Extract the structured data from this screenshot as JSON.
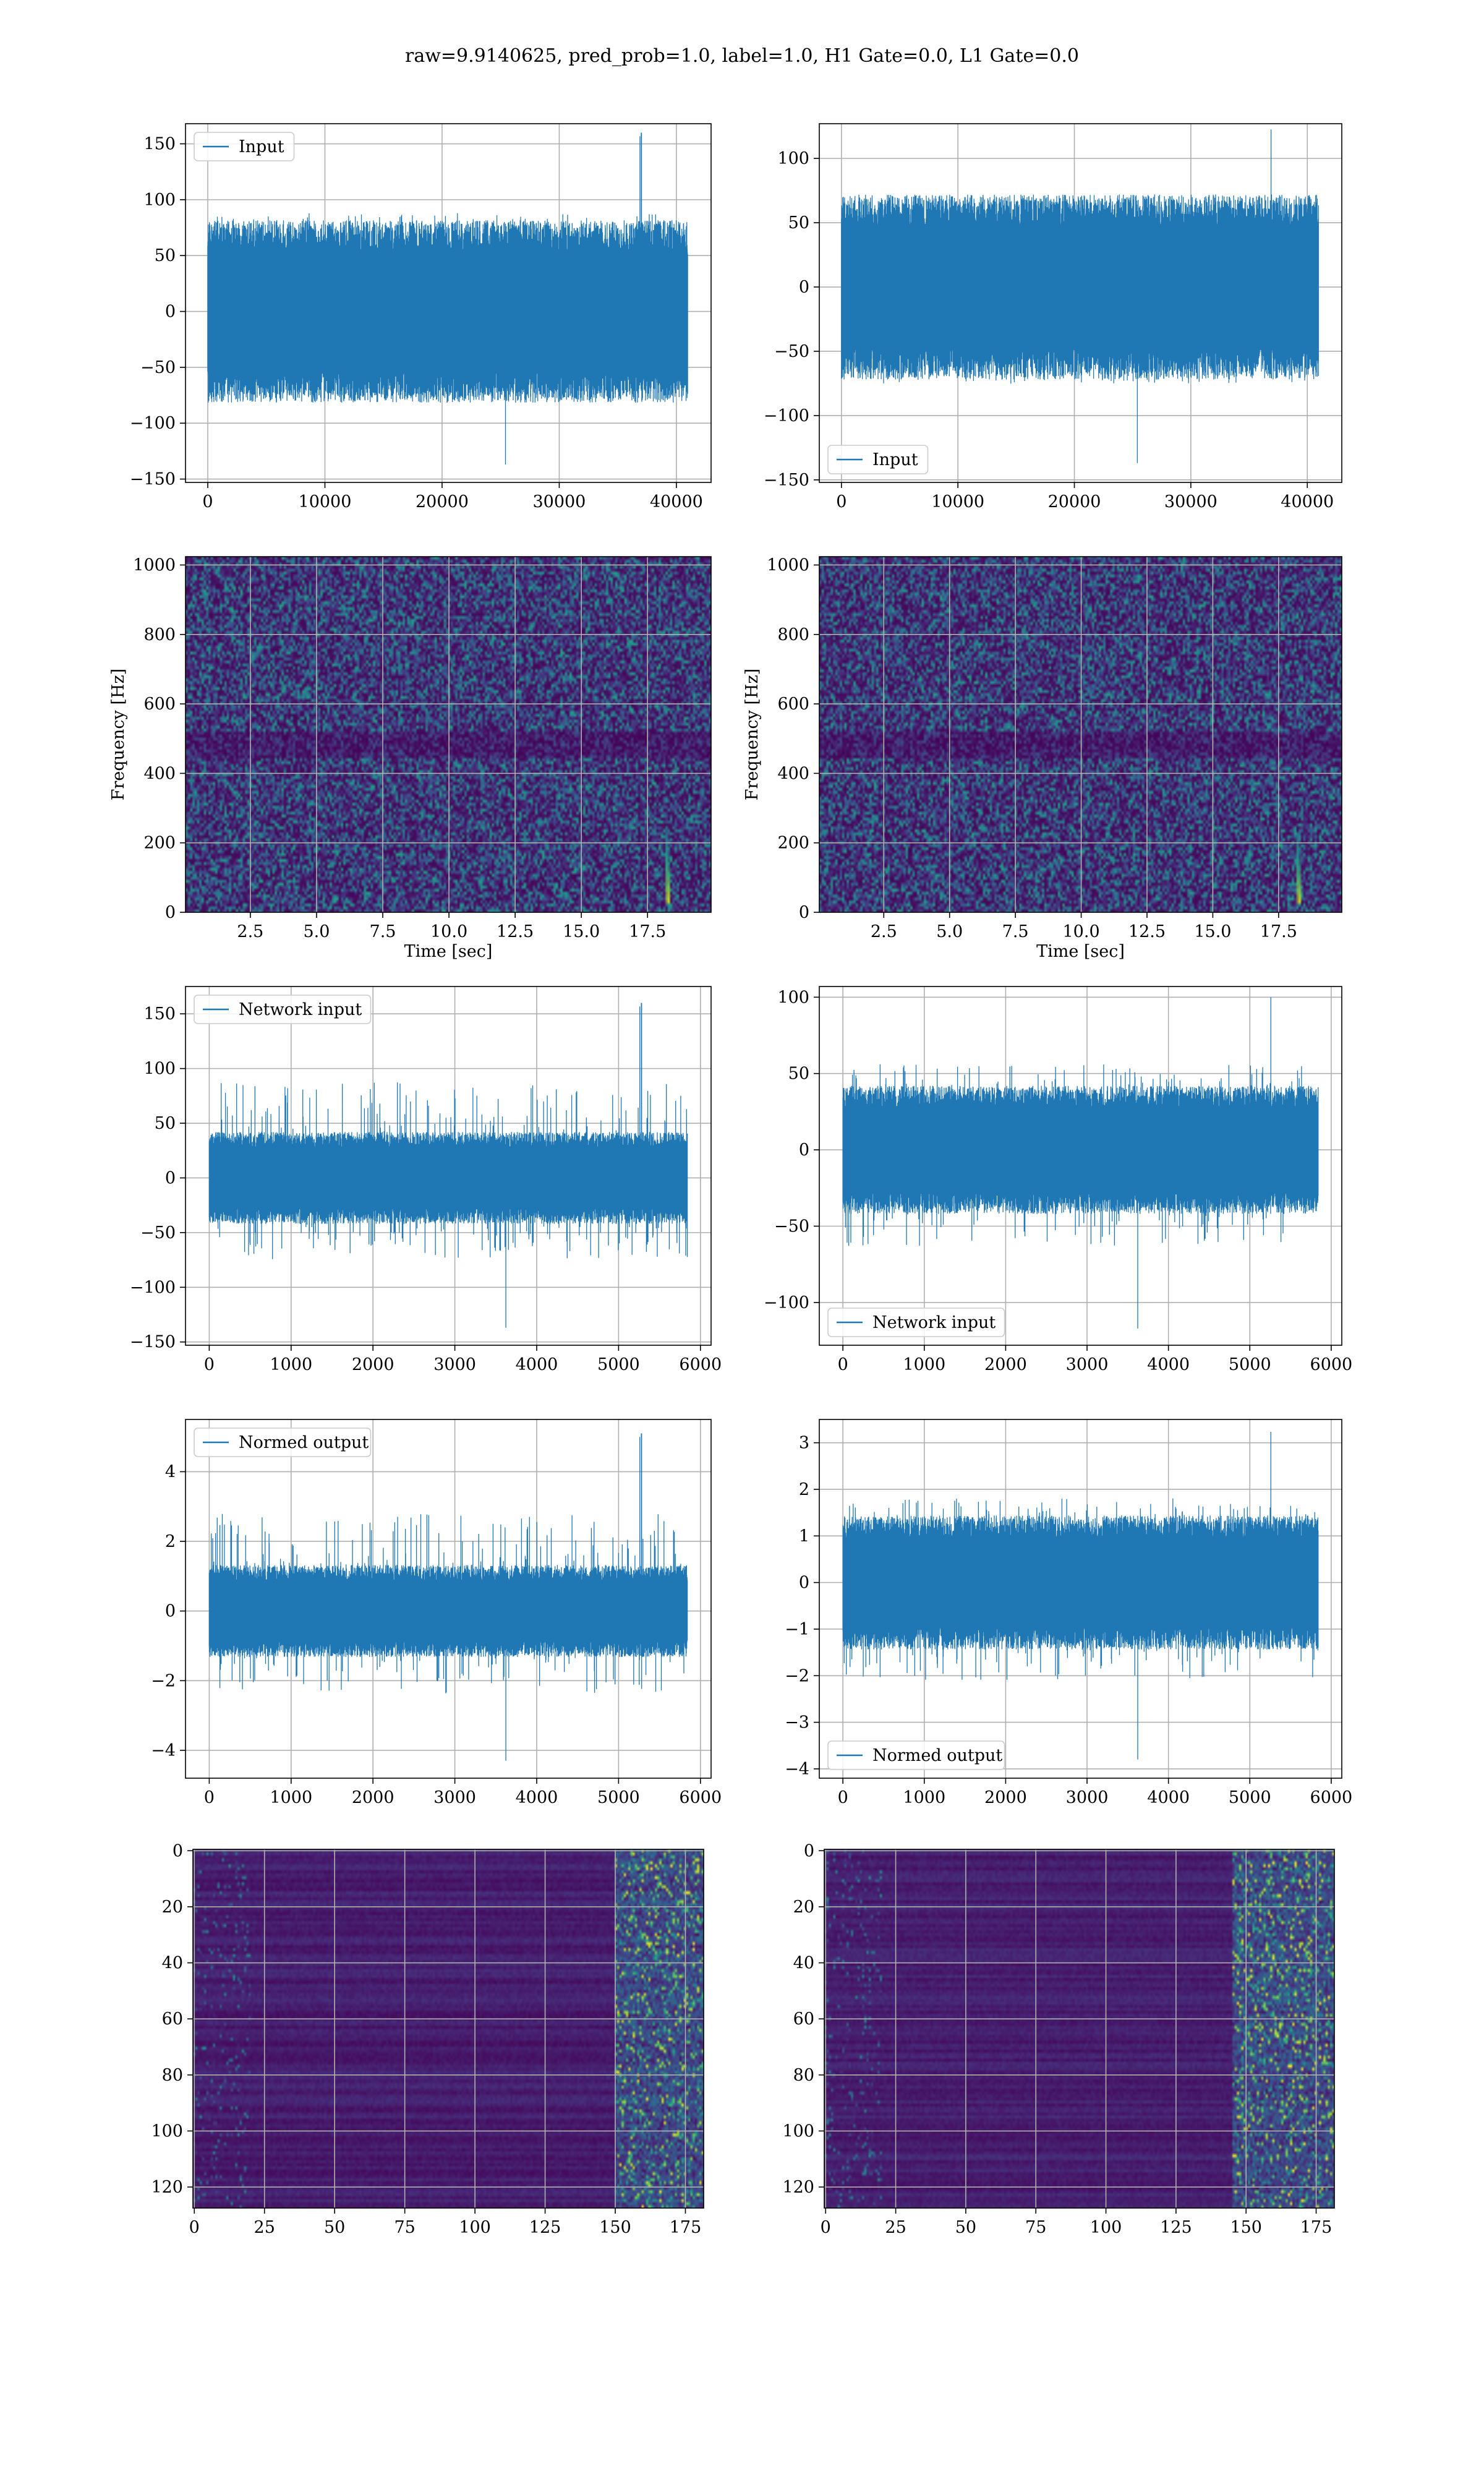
{
  "figure": {
    "suptitle": "raw=9.9140625, pred_prob=1.0, label=1.0, H1 Gate=0.0, L1 Gate=0.0",
    "colors": {
      "line": "#1f77b4",
      "grid": "#b0b0b0",
      "cmap_low": "#440154",
      "cmap_high": "#fde725"
    }
  },
  "chart_data": [
    {
      "id": "p1",
      "type": "line",
      "legend": "Input",
      "legend_loc": "upper-left",
      "xlim": [
        -1900,
        42960
      ],
      "ylim": [
        -153,
        168
      ],
      "xticks": [
        0,
        10000,
        20000,
        30000,
        40000
      ],
      "xtick_labels": [
        "0",
        "10000",
        "20000",
        "30000",
        "40000"
      ],
      "yticks": [
        -150,
        -100,
        -50,
        0,
        50,
        100,
        150
      ],
      "ytick_labels": [
        "−150",
        "−100",
        "−50",
        "0",
        "50",
        "100",
        "150"
      ],
      "series": {
        "n": 40960,
        "band": [
          -68,
          68
        ],
        "peak_max": 160,
        "peak_min": -137,
        "spike_at": 37000
      }
    },
    {
      "id": "p2",
      "type": "line",
      "legend": "Input",
      "legend_loc": "lower-left",
      "xlim": [
        -1900,
        42960
      ],
      "ylim": [
        -152,
        127
      ],
      "xticks": [
        0,
        10000,
        20000,
        30000,
        40000
      ],
      "xtick_labels": [
        "0",
        "10000",
        "20000",
        "30000",
        "40000"
      ],
      "yticks": [
        -150,
        -100,
        -50,
        0,
        50,
        100
      ],
      "ytick_labels": [
        "−150",
        "−100",
        "−50",
        "0",
        "50",
        "100"
      ],
      "series": {
        "n": 40960,
        "band": [
          -60,
          60
        ],
        "peak_max": 125,
        "peak_min": -137
      }
    },
    {
      "id": "p3",
      "type": "heatmap",
      "cmap": "viridis",
      "xlim": [
        0.05,
        19.9
      ],
      "ylim": [
        0,
        1024
      ],
      "xticks": [
        2.5,
        5,
        7.5,
        10,
        12.5,
        15,
        17.5
      ],
      "xtick_labels": [
        "2.5",
        "5.0",
        "7.5",
        "10.0",
        "12.5",
        "15.0",
        "17.5"
      ],
      "yticks": [
        0,
        200,
        400,
        600,
        800,
        1000
      ],
      "ytick_labels": [
        "0",
        "200",
        "400",
        "600",
        "800",
        "1000"
      ],
      "xlabel": "Time [sec]",
      "ylabel": "Frequency [Hz]",
      "chirp": {
        "t": 18.2,
        "f_range": [
          30,
          230
        ]
      }
    },
    {
      "id": "p4",
      "type": "heatmap",
      "cmap": "viridis",
      "xlim": [
        0.05,
        19.9
      ],
      "ylim": [
        0,
        1024
      ],
      "xticks": [
        2.5,
        5,
        7.5,
        10,
        12.5,
        15,
        17.5
      ],
      "xtick_labels": [
        "2.5",
        "5.0",
        "7.5",
        "10.0",
        "12.5",
        "15.0",
        "17.5"
      ],
      "yticks": [
        0,
        200,
        400,
        600,
        800,
        1000
      ],
      "ytick_labels": [
        "0",
        "200",
        "400",
        "600",
        "800",
        "1000"
      ],
      "xlabel": "Time [sec]",
      "ylabel": "Frequency [Hz]",
      "chirp": {
        "t": 18.2,
        "f_range": [
          30,
          220
        ]
      }
    },
    {
      "id": "p5",
      "type": "line",
      "legend": "Network input",
      "legend_loc": "upper-left",
      "xlim": [
        -290,
        6130
      ],
      "ylim": [
        -153,
        175
      ],
      "xticks": [
        0,
        1000,
        2000,
        3000,
        4000,
        5000,
        6000
      ],
      "xtick_labels": [
        "0",
        "1000",
        "2000",
        "3000",
        "4000",
        "5000",
        "6000"
      ],
      "yticks": [
        -150,
        -100,
        -50,
        0,
        50,
        100,
        150
      ],
      "ytick_labels": [
        "−150",
        "−100",
        "−50",
        "0",
        "50",
        "100",
        "150"
      ],
      "series": {
        "n": 5840,
        "band": [
          -35,
          35
        ],
        "peak_max": 160,
        "peak_min": -137,
        "spike_at": 5280
      }
    },
    {
      "id": "p6",
      "type": "line",
      "legend": "Network input",
      "legend_loc": "lower-left",
      "xlim": [
        -290,
        6130
      ],
      "ylim": [
        -128,
        107
      ],
      "xticks": [
        0,
        1000,
        2000,
        3000,
        4000,
        5000,
        6000
      ],
      "xtick_labels": [
        "0",
        "1000",
        "2000",
        "3000",
        "4000",
        "5000",
        "6000"
      ],
      "yticks": [
        -100,
        -50,
        0,
        50,
        100
      ],
      "ytick_labels": [
        "−100",
        "−50",
        "0",
        "50",
        "100"
      ],
      "series": {
        "n": 5840,
        "band": [
          -35,
          35
        ],
        "peak_max": 102,
        "peak_min": -117
      }
    },
    {
      "id": "p7",
      "type": "line",
      "legend": "Normed output",
      "legend_loc": "upper-left",
      "xlim": [
        -290,
        6130
      ],
      "ylim": [
        -4.8,
        5.5
      ],
      "xticks": [
        0,
        1000,
        2000,
        3000,
        4000,
        5000,
        6000
      ],
      "xtick_labels": [
        "0",
        "1000",
        "2000",
        "3000",
        "4000",
        "5000",
        "6000"
      ],
      "yticks": [
        -4,
        -2,
        0,
        2,
        4
      ],
      "ytick_labels": [
        "−4",
        "−2",
        "0",
        "2",
        "4"
      ],
      "series": {
        "n": 5840,
        "band": [
          -1.1,
          1.1
        ],
        "peak_max": 5.1,
        "peak_min": -4.3,
        "spike_at": 5280
      }
    },
    {
      "id": "p8",
      "type": "line",
      "legend": "Normed output",
      "legend_loc": "lower-left",
      "xlim": [
        -290,
        6130
      ],
      "ylim": [
        -4.2,
        3.5
      ],
      "xticks": [
        0,
        1000,
        2000,
        3000,
        4000,
        5000,
        6000
      ],
      "xtick_labels": [
        "0",
        "1000",
        "2000",
        "3000",
        "4000",
        "5000",
        "6000"
      ],
      "yticks": [
        -4,
        -3,
        -2,
        -1,
        0,
        1,
        2,
        3
      ],
      "ytick_labels": [
        "−4",
        "−3",
        "−2",
        "−1",
        "0",
        "1",
        "2",
        "3"
      ],
      "series": {
        "n": 5840,
        "band": [
          -1.2,
          1.2
        ],
        "peak_max": 3.3,
        "peak_min": -3.8
      }
    },
    {
      "id": "p9",
      "type": "heatmap",
      "cmap": "viridis",
      "xlim": [
        -0.5,
        181.5
      ],
      "ylim": [
        127.5,
        -0.5
      ],
      "xticks": [
        0,
        25,
        50,
        75,
        100,
        125,
        150,
        175
      ],
      "xtick_labels": [
        "0",
        "25",
        "50",
        "75",
        "100",
        "125",
        "150",
        "175"
      ],
      "yticks": [
        0,
        20,
        40,
        60,
        80,
        100,
        120
      ],
      "ytick_labels": [
        "0",
        "20",
        "40",
        "60",
        "80",
        "100",
        "120"
      ],
      "hot_cols": [
        150,
        181
      ]
    },
    {
      "id": "p10",
      "type": "heatmap",
      "cmap": "viridis",
      "xlim": [
        -0.5,
        181.5
      ],
      "ylim": [
        127.5,
        -0.5
      ],
      "xticks": [
        0,
        25,
        50,
        75,
        100,
        125,
        150,
        175
      ],
      "xtick_labels": [
        "0",
        "25",
        "50",
        "75",
        "100",
        "125",
        "150",
        "175"
      ],
      "yticks": [
        0,
        20,
        40,
        60,
        80,
        100,
        120
      ],
      "ytick_labels": [
        "0",
        "20",
        "40",
        "60",
        "80",
        "100",
        "120"
      ],
      "hot_cols": [
        145,
        170
      ]
    }
  ]
}
